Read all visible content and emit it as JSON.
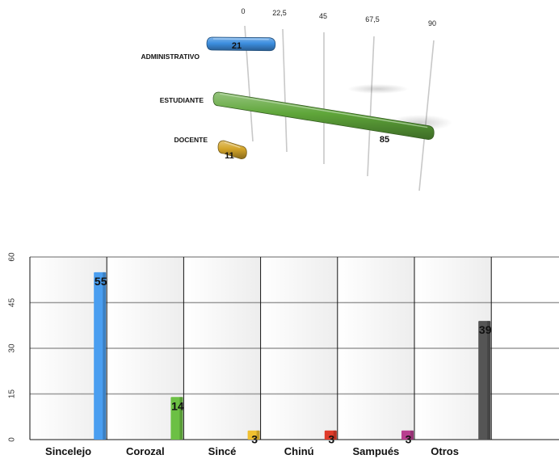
{
  "chart_data": [
    {
      "type": "bar",
      "orientation": "horizontal",
      "style": "3d",
      "categories": [
        "ADMINISTRATIVO",
        "ESTUDIANTE",
        "DOCENTE"
      ],
      "values": [
        21,
        85,
        11
      ],
      "colors": [
        "#3d8fe0",
        "#5fa63a",
        "#d4a52a"
      ],
      "xticks": [
        "0",
        "22,5",
        "45",
        "67,5",
        "90"
      ],
      "xlim": [
        0,
        90
      ],
      "grid": true,
      "title": "",
      "xlabel": "",
      "ylabel": ""
    },
    {
      "type": "bar",
      "orientation": "vertical",
      "categories": [
        "Sincelejo",
        "Corozal",
        "Sincé",
        "Chinú",
        "Sampués",
        "Otros"
      ],
      "values": [
        55,
        14,
        3,
        3,
        3,
        39
      ],
      "colors": [
        "#4a9ef0",
        "#6cc044",
        "#f0c030",
        "#e03b2a",
        "#b83f8f",
        "#555555"
      ],
      "yticks": [
        "0",
        "15",
        "30",
        "45",
        "60"
      ],
      "ylim": [
        0,
        60
      ],
      "grid": true,
      "title": "",
      "xlabel": "",
      "ylabel": ""
    }
  ]
}
